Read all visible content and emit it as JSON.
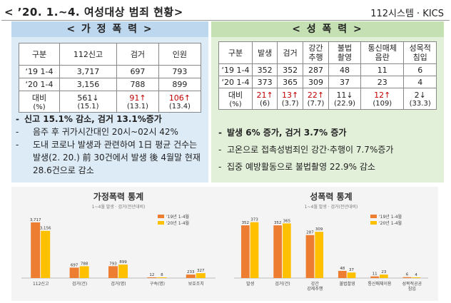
{
  "header": {
    "title": "< ’20. 1.~4. 여성대상 범죄 현황>",
    "source": "112시스템 · KICS"
  },
  "domestic": {
    "heading": "< 가 정 폭 력 >",
    "columns": [
      "구분",
      "112신고",
      "검거",
      "인원"
    ],
    "rows": [
      [
        "‘19 1-4",
        "3,717",
        "697",
        "793"
      ],
      [
        "‘20 1-4",
        "3,156",
        "788",
        "899"
      ]
    ],
    "compare": {
      "label": "대비",
      "unit": "(%)",
      "cells": [
        {
          "main": "561↓",
          "sub": "(15.1)"
        },
        {
          "main": "91↑",
          "sub": "(13.1)"
        },
        {
          "main": "106↑",
          "sub": "(13.4)"
        }
      ]
    },
    "bullets": [
      "신고 15.1% 감소, 검거 13.1%증가",
      "음주 후 귀가시간대인 20시~02시 42%",
      "도내 코로나 발생과 관련하여 1日 평균 건수는 발생(2. 20.) 前 30건에서 발생 後 4월말 현재 28.6건으로 감소"
    ]
  },
  "sexual": {
    "heading": "< 성 폭 력 >",
    "columns": [
      "구분",
      "발생",
      "검거",
      "강간\n추행",
      "불법\n촬영",
      "통신매체\n음란",
      "성목적\n침입"
    ],
    "rows": [
      [
        "‘19 1-4",
        "352",
        "352",
        "287",
        "48",
        "11",
        "6"
      ],
      [
        "‘20 1-4",
        "373",
        "365",
        "309",
        "37",
        "23",
        "4"
      ]
    ],
    "compare": {
      "label": "대비",
      "unit": "(%)",
      "cells": [
        {
          "main": "21↑",
          "sub": "(6)"
        },
        {
          "main": "13↑",
          "sub": "(3.7)"
        },
        {
          "main": "22↑",
          "sub": "(7.7)"
        },
        {
          "main": "11↓",
          "sub": "(22.9)"
        },
        {
          "main": "12↑",
          "sub": "(109)"
        },
        {
          "main": "2↓",
          "sub": "(33.3)"
        }
      ]
    },
    "bullets": [
      "발생 6% 증가, 검거 3.7% 증가",
      "고온으로 접촉성범죄인 강간·추행이 7.7%증가",
      "집중 예방활동으로 불법촬영 22.9% 감소"
    ]
  },
  "colors": {
    "series_2019": "#ed7d31",
    "series_2020": "#ffc000"
  },
  "chart_data": [
    {
      "type": "bar",
      "title": "가정폭력 통계",
      "subtitle": "1~4월 발생 · 검거(전년대비)",
      "categories": [
        "112신고",
        "검거(건)",
        "검거(명)",
        "구속(명)",
        "보호조치"
      ],
      "series": [
        {
          "name": "'19년 1-4월",
          "values": [
            3717,
            697,
            793,
            12,
            233
          ]
        },
        {
          "name": "'20년 1-4월",
          "values": [
            3156,
            788,
            899,
            8,
            327
          ]
        }
      ],
      "ylim": [
        0,
        4000
      ]
    },
    {
      "type": "bar",
      "title": "성폭력 통계",
      "subtitle": "1~4월 발생 · 검거(전년대비)",
      "categories": [
        "발생",
        "검거(건)",
        "강간\n강제추행",
        "불법촬영",
        "통신매체이용",
        "성목적공공\n침입"
      ],
      "series": [
        {
          "name": "'19년 1-4월",
          "values": [
            352,
            352,
            287,
            48,
            11,
            6
          ]
        },
        {
          "name": "'20년 1-4월",
          "values": [
            373,
            365,
            309,
            37,
            23,
            4
          ]
        }
      ],
      "ylim": [
        0,
        400
      ]
    }
  ]
}
